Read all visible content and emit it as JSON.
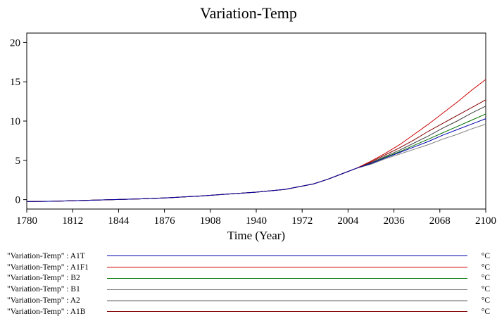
{
  "chart": {
    "title": "Variation-Temp"
  },
  "chart_data": {
    "type": "line",
    "title": "Variation-Temp",
    "xlabel": "Time (Year)",
    "ylabel": "",
    "unit": "°C",
    "xlim": [
      1780,
      2100
    ],
    "ylim": [
      0,
      20
    ],
    "ylim_draw": [
      -1.2,
      21.2
    ],
    "x_ticks": [
      1780,
      1812,
      1844,
      1876,
      1908,
      1940,
      1972,
      2004,
      2036,
      2068,
      2100
    ],
    "y_ticks": [
      0,
      5,
      10,
      15,
      20
    ],
    "grid": false,
    "legend_position": "bottom",
    "x": [
      1780,
      1800,
      1820,
      1840,
      1860,
      1880,
      1900,
      1920,
      1940,
      1960,
      1980,
      1990,
      2000,
      2010,
      2020,
      2030,
      2040,
      2050,
      2060,
      2070,
      2080,
      2090,
      2100
    ],
    "series": [
      {
        "name": "A1T",
        "legend_label": "\"Variation-Temp\" : A1T",
        "unit": "°C",
        "color": "#0000b0",
        "values": [
          -0.25,
          -0.2,
          -0.1,
          0.0,
          0.1,
          0.25,
          0.45,
          0.7,
          0.95,
          1.3,
          2.0,
          2.6,
          3.3,
          4.0,
          4.6,
          5.3,
          6.0,
          6.7,
          7.4,
          8.2,
          8.9,
          9.6,
          10.3
        ]
      },
      {
        "name": "A1F1",
        "legend_label": "\"Variation-Temp\" : A1F1",
        "unit": "°C",
        "color": "#cc0000",
        "values": [
          -0.25,
          -0.2,
          -0.1,
          0.0,
          0.1,
          0.25,
          0.45,
          0.7,
          0.95,
          1.3,
          2.0,
          2.6,
          3.3,
          4.0,
          4.9,
          5.9,
          7.0,
          8.3,
          9.6,
          11.0,
          12.4,
          13.9,
          15.3
        ]
      },
      {
        "name": "B2",
        "legend_label": "\"Variation-Temp\" : B2",
        "unit": "°C",
        "color": "#007000",
        "values": [
          -0.25,
          -0.2,
          -0.1,
          0.0,
          0.1,
          0.25,
          0.45,
          0.7,
          0.95,
          1.3,
          2.0,
          2.6,
          3.3,
          4.0,
          4.6,
          5.4,
          6.1,
          6.9,
          7.7,
          8.5,
          9.3,
          10.1,
          10.9
        ]
      },
      {
        "name": "B1",
        "legend_label": "\"Variation-Temp\" : B1",
        "unit": "°C",
        "color": "#808080",
        "values": [
          -0.25,
          -0.2,
          -0.1,
          0.0,
          0.1,
          0.25,
          0.45,
          0.7,
          0.95,
          1.3,
          2.0,
          2.6,
          3.3,
          4.0,
          4.5,
          5.2,
          5.8,
          6.4,
          7.0,
          7.7,
          8.3,
          9.0,
          9.6
        ]
      },
      {
        "name": "A2",
        "legend_label": "\"Variation-Temp\" : A2",
        "unit": "°C",
        "color": "#404040",
        "values": [
          -0.25,
          -0.2,
          -0.1,
          0.0,
          0.1,
          0.25,
          0.45,
          0.7,
          0.95,
          1.3,
          2.0,
          2.6,
          3.3,
          4.0,
          4.7,
          5.5,
          6.3,
          7.2,
          8.1,
          9.1,
          10.0,
          11.0,
          11.9
        ]
      },
      {
        "name": "A1B",
        "legend_label": "\"Variation-Temp\" : A1B",
        "unit": "°C",
        "color": "#800000",
        "values": [
          -0.25,
          -0.2,
          -0.1,
          0.0,
          0.1,
          0.25,
          0.45,
          0.7,
          0.95,
          1.3,
          2.0,
          2.6,
          3.3,
          4.0,
          4.8,
          5.7,
          6.6,
          7.6,
          8.7,
          9.7,
          10.7,
          11.7,
          12.7
        ]
      }
    ]
  }
}
